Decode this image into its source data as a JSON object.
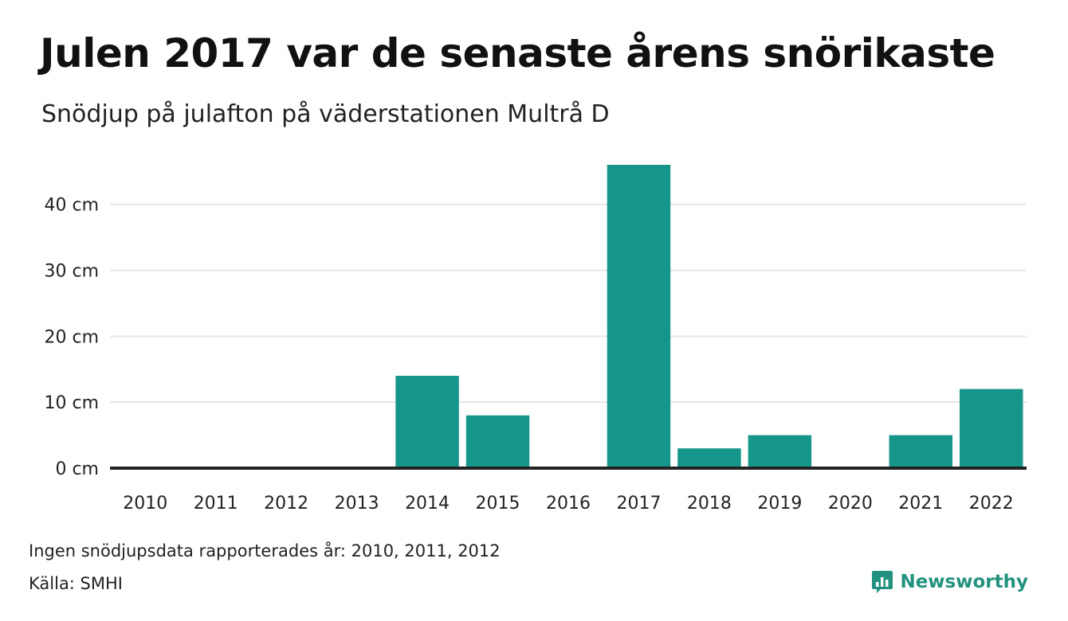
{
  "header": {
    "title": "Julen 2017 var de senaste årens snörikaste",
    "subtitle": "Snödjup på julafton på väderstationen Multrå D"
  },
  "footer": {
    "note": "Ingen snödjupsdata rapporterades år: 2010, 2011, 2012",
    "source": "Källa: SMHI"
  },
  "logo": {
    "text": "Newsworthy",
    "icon": "newsworthy-logo-icon",
    "color": "#22927f"
  },
  "colors": {
    "bar": "#16968a",
    "gridline": "#e6e6e6",
    "baseline": "#222222"
  },
  "chart_data": {
    "type": "bar",
    "categories": [
      "2010",
      "2011",
      "2012",
      "2013",
      "2014",
      "2015",
      "2016",
      "2017",
      "2018",
      "2019",
      "2020",
      "2021",
      "2022"
    ],
    "values": [
      null,
      null,
      null,
      0,
      14,
      8,
      0,
      46,
      3,
      5,
      0,
      5,
      12
    ],
    "ylim": [
      0,
      46
    ],
    "yticks": [
      0,
      10,
      20,
      30,
      40
    ],
    "ytick_labels": [
      "0 cm",
      "10 cm",
      "20 cm",
      "30 cm",
      "40 cm"
    ],
    "grid": true,
    "legend": "none"
  }
}
